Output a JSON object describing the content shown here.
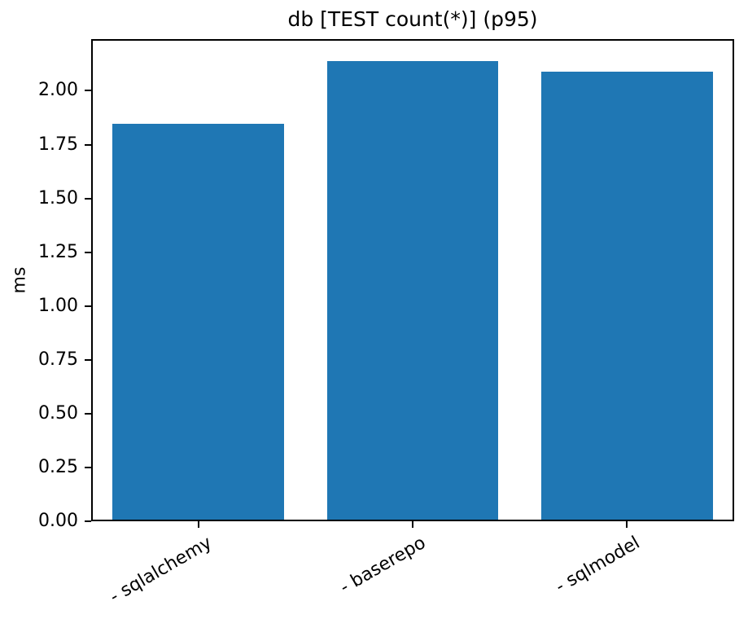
{
  "chart_data": {
    "type": "bar",
    "title": "db [TEST count(*)] (p95)",
    "xlabel": "",
    "ylabel": "ms",
    "categories": [
      "- sqlalchemy",
      "- baserepo",
      "- sqlmodel"
    ],
    "values": [
      1.84,
      2.13,
      2.08
    ],
    "ylim": [
      0,
      2.24
    ],
    "yticks": [
      0,
      0.25,
      0.5,
      0.75,
      1.0,
      1.25,
      1.5,
      1.75,
      2.0
    ],
    "ytick_labels": [
      "0.00",
      "0.25",
      "0.50",
      "0.75",
      "1.00",
      "1.25",
      "1.50",
      "1.75",
      "2.00"
    ],
    "xtick_rotation_deg": 30,
    "bar_width_fraction": 0.8,
    "bar_color": "#1f77b4",
    "axis_color": "#000000",
    "text_color": "#000000",
    "background_color": "#ffffff",
    "grid": false,
    "legend": null
  }
}
